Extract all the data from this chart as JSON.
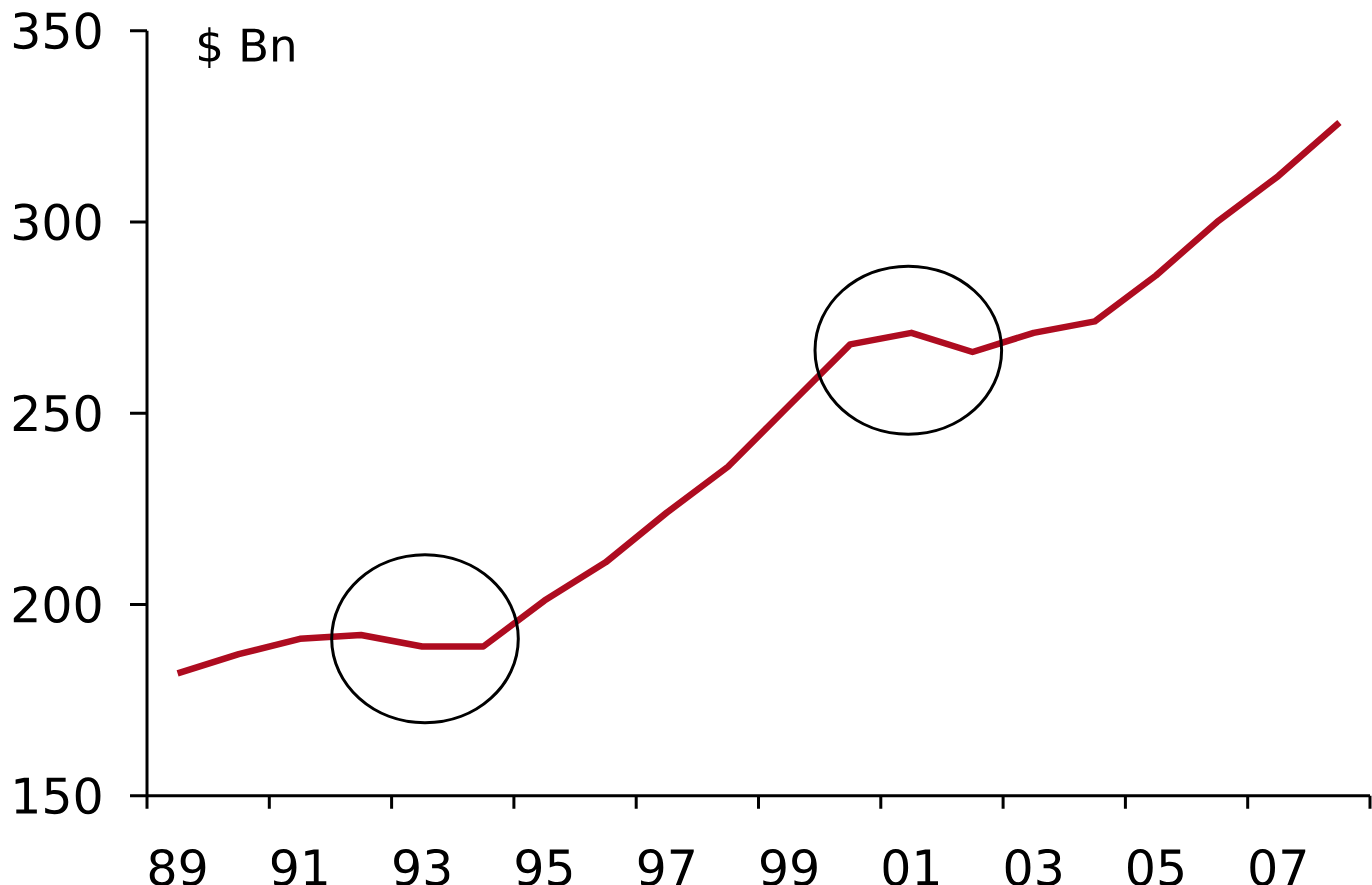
{
  "chart_data": {
    "type": "line",
    "ylabel": "$ Bn",
    "categories": [
      "89",
      null,
      "91",
      null,
      "93",
      null,
      "95",
      null,
      "97",
      null,
      "99",
      null,
      "01",
      null,
      "03",
      null,
      "05",
      null,
      "07",
      null
    ],
    "series": [
      {
        "color": "#ae0c20",
        "values": [
          182,
          187,
          191,
          192,
          189,
          189,
          201,
          211,
          224,
          236,
          252,
          268,
          271,
          266,
          271,
          274,
          286,
          300,
          312,
          326
        ]
      }
    ],
    "ylim": [
      150,
      350
    ],
    "yticks": [
      150,
      200,
      250,
      300,
      350
    ],
    "marker": "none",
    "line_style": "solid"
  }
}
